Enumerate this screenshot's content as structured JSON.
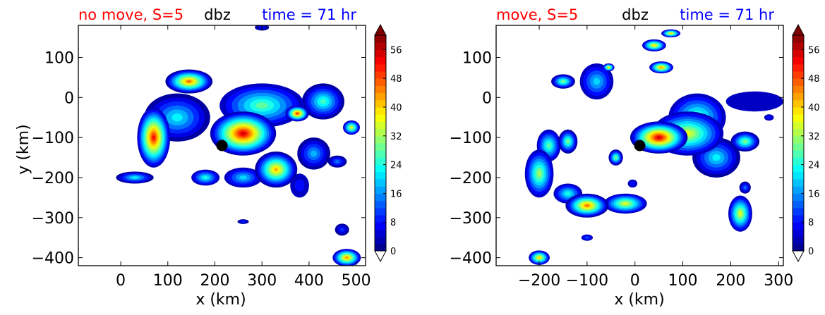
{
  "colors": {
    "left_title": "#ff0000",
    "center_title": "#000000",
    "right_title": "#0000ff",
    "cone": "#000000"
  },
  "colorbar": {
    "ticks": [
      0,
      8,
      16,
      24,
      32,
      40,
      48,
      56
    ],
    "range": [
      0,
      60
    ],
    "extend": "both",
    "colormap": "jet"
  },
  "chart_data": [
    {
      "type": "contourf",
      "title_left": "no move, S=5",
      "title_center": "dbz",
      "title_right": "time = 71 hr",
      "xlabel": "x (km)",
      "ylabel": "y (km)",
      "xlim": [
        -90,
        520
      ],
      "ylim": [
        -420,
        180
      ],
      "xticks": [
        "0",
        "100",
        "200",
        "300",
        "400",
        "500"
      ],
      "yticks": [
        "100",
        "0",
        "−100",
        "−200",
        "−300",
        "−400"
      ],
      "xtick_values": [
        0,
        100,
        200,
        300,
        400,
        500
      ],
      "ytick_values": [
        100,
        0,
        -100,
        -200,
        -300,
        -400
      ],
      "center_marker": {
        "x": 215,
        "y": -120
      },
      "echo_cells": [
        {
          "x": 70,
          "y": -100,
          "rx": 35,
          "ry": 75,
          "dbz": 52
        },
        {
          "x": 145,
          "y": 40,
          "rx": 50,
          "ry": 30,
          "dbz": 46
        },
        {
          "x": 120,
          "y": -50,
          "rx": 70,
          "ry": 60,
          "dbz": 22
        },
        {
          "x": 260,
          "y": -90,
          "rx": 70,
          "ry": 55,
          "dbz": 55
        },
        {
          "x": 300,
          "y": -20,
          "rx": 90,
          "ry": 55,
          "dbz": 28
        },
        {
          "x": 330,
          "y": -180,
          "rx": 45,
          "ry": 45,
          "dbz": 42
        },
        {
          "x": 375,
          "y": -40,
          "rx": 25,
          "ry": 20,
          "dbz": 50
        },
        {
          "x": 430,
          "y": -10,
          "rx": 45,
          "ry": 45,
          "dbz": 26
        },
        {
          "x": 260,
          "y": -200,
          "rx": 40,
          "ry": 25,
          "dbz": 20
        },
        {
          "x": 180,
          "y": -200,
          "rx": 30,
          "ry": 20,
          "dbz": 24
        },
        {
          "x": 410,
          "y": -140,
          "rx": 35,
          "ry": 40,
          "dbz": 18
        },
        {
          "x": 490,
          "y": -75,
          "rx": 18,
          "ry": 18,
          "dbz": 36
        },
        {
          "x": 460,
          "y": -160,
          "rx": 20,
          "ry": 15,
          "dbz": 14
        },
        {
          "x": 480,
          "y": -400,
          "rx": 30,
          "ry": 22,
          "dbz": 44
        },
        {
          "x": 470,
          "y": -330,
          "rx": 15,
          "ry": 15,
          "dbz": 10
        },
        {
          "x": 260,
          "y": -310,
          "rx": 12,
          "ry": 6,
          "dbz": 10
        },
        {
          "x": 30,
          "y": -200,
          "rx": 40,
          "ry": 15,
          "dbz": 22
        },
        {
          "x": 380,
          "y": -220,
          "rx": 20,
          "ry": 30,
          "dbz": 8
        },
        {
          "x": 300,
          "y": 175,
          "rx": 15,
          "ry": 8,
          "dbz": 6
        }
      ]
    },
    {
      "type": "contourf",
      "title_left": "move, S=5",
      "title_center": "dbz",
      "title_right": "time = 71 hr",
      "xlabel": "x (km)",
      "ylabel": "",
      "xlim": [
        -290,
        310
      ],
      "ylim": [
        -420,
        180
      ],
      "xticks": [
        "−200",
        "−100",
        "0",
        "100",
        "200",
        "300"
      ],
      "yticks": [
        "100",
        "0",
        "−100",
        "−200",
        "−300",
        "−400"
      ],
      "xtick_values": [
        -200,
        -100,
        0,
        100,
        200,
        300
      ],
      "ytick_values": [
        100,
        0,
        -100,
        -200,
        -300,
        -400
      ],
      "center_marker": {
        "x": 10,
        "y": -120
      },
      "echo_cells": [
        {
          "x": 50,
          "y": -100,
          "rx": 60,
          "ry": 40,
          "dbz": 55
        },
        {
          "x": 110,
          "y": -90,
          "rx": 75,
          "ry": 55,
          "dbz": 36
        },
        {
          "x": 130,
          "y": -50,
          "rx": 60,
          "ry": 60,
          "dbz": 28
        },
        {
          "x": 170,
          "y": -150,
          "rx": 50,
          "ry": 50,
          "dbz": 22
        },
        {
          "x": 250,
          "y": -10,
          "rx": 60,
          "ry": 25,
          "dbz": 4
        },
        {
          "x": 230,
          "y": -110,
          "rx": 30,
          "ry": 25,
          "dbz": 30
        },
        {
          "x": -100,
          "y": -270,
          "rx": 45,
          "ry": 30,
          "dbz": 46
        },
        {
          "x": -20,
          "y": -265,
          "rx": 45,
          "ry": 25,
          "dbz": 36
        },
        {
          "x": -200,
          "y": -190,
          "rx": 30,
          "ry": 60,
          "dbz": 32
        },
        {
          "x": -180,
          "y": -120,
          "rx": 25,
          "ry": 40,
          "dbz": 28
        },
        {
          "x": -140,
          "y": -110,
          "rx": 20,
          "ry": 30,
          "dbz": 30
        },
        {
          "x": -140,
          "y": -240,
          "rx": 30,
          "ry": 25,
          "dbz": 24
        },
        {
          "x": -200,
          "y": -400,
          "rx": 22,
          "ry": 18,
          "dbz": 40
        },
        {
          "x": -100,
          "y": -350,
          "rx": 12,
          "ry": 8,
          "dbz": 12
        },
        {
          "x": -150,
          "y": 40,
          "rx": 25,
          "ry": 18,
          "dbz": 30
        },
        {
          "x": -80,
          "y": 40,
          "rx": 35,
          "ry": 45,
          "dbz": 20
        },
        {
          "x": -55,
          "y": 75,
          "rx": 12,
          "ry": 10,
          "dbz": 40
        },
        {
          "x": -40,
          "y": -150,
          "rx": 15,
          "ry": 20,
          "dbz": 30
        },
        {
          "x": 40,
          "y": 130,
          "rx": 25,
          "ry": 15,
          "dbz": 40
        },
        {
          "x": 75,
          "y": 160,
          "rx": 20,
          "ry": 10,
          "dbz": 40
        },
        {
          "x": 55,
          "y": 75,
          "rx": 25,
          "ry": 15,
          "dbz": 44
        },
        {
          "x": 220,
          "y": -290,
          "rx": 25,
          "ry": 45,
          "dbz": 36
        },
        {
          "x": 230,
          "y": -225,
          "rx": 12,
          "ry": 15,
          "dbz": 14
        },
        {
          "x": -5,
          "y": -215,
          "rx": 10,
          "ry": 10,
          "dbz": 8
        },
        {
          "x": 280,
          "y": -50,
          "rx": 10,
          "ry": 8,
          "dbz": 8
        }
      ]
    }
  ]
}
